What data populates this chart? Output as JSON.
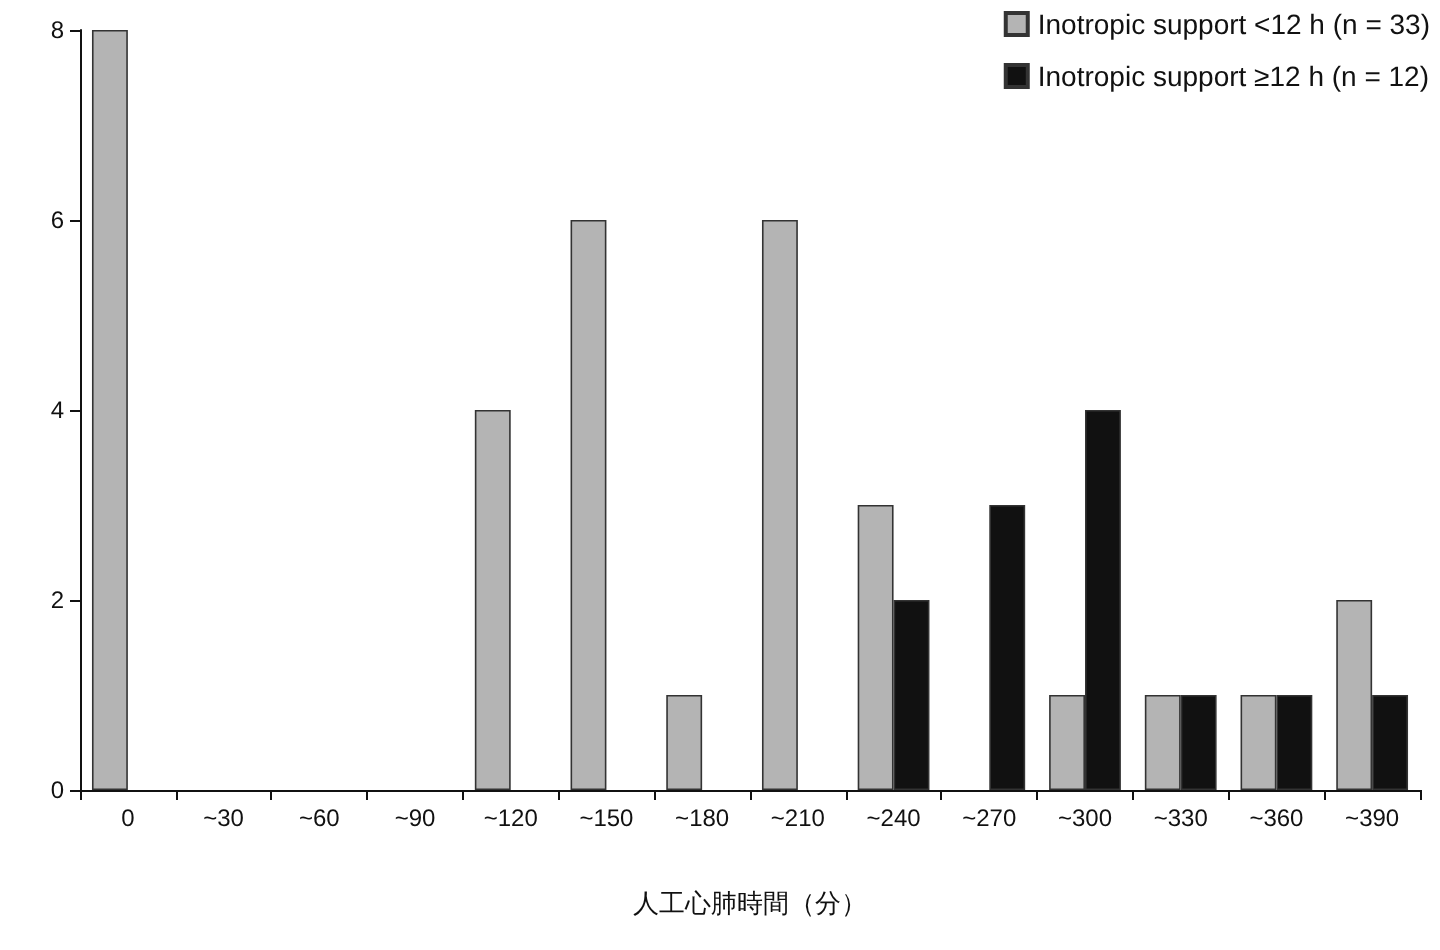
{
  "chart_data": {
    "type": "bar",
    "xlabel": "人工心肺時間（分）",
    "categories": [
      "0",
      "~30",
      "~60",
      "~90",
      "~120",
      "~150",
      "~180",
      "~210",
      "~240",
      "~270",
      "~300",
      "~330",
      "~360",
      "~390"
    ],
    "series": [
      {
        "name": "Inotropic support <12 h (n = 33)",
        "color": "#b4b4b4",
        "values": [
          8,
          0,
          0,
          0,
          4,
          6,
          1,
          6,
          3,
          0,
          1,
          1,
          1,
          2
        ]
      },
      {
        "name": "Inotropic support ≥12 h (n = 12)",
        "color": "#111111",
        "values": [
          0,
          0,
          0,
          0,
          0,
          0,
          0,
          0,
          2,
          3,
          4,
          1,
          1,
          1
        ]
      }
    ],
    "ylim": [
      0,
      8
    ],
    "yticks": [
      0,
      2,
      4,
      6,
      8
    ],
    "grid": false,
    "legend": "top right"
  }
}
